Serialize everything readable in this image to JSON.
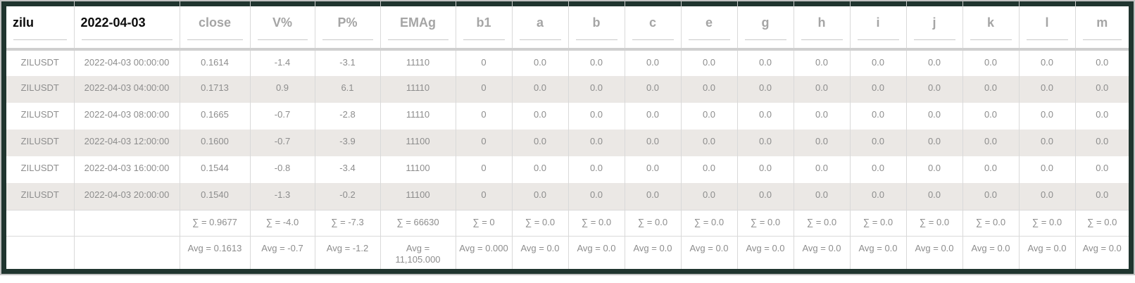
{
  "colors": {
    "frame_dark": "#20352f",
    "frame_outer_line": "#c2c2c2",
    "grid_line": "#d9d9d9",
    "header_divider": "#cfcfcf",
    "stripe_row": "#ebe8e5",
    "text_muted": "#8d8d8d",
    "header_muted": "#a5a5a5",
    "header_strong": "#0d0d0d"
  },
  "table": {
    "columns": [
      {
        "id": "zilu",
        "label": "zilu",
        "strong": true
      },
      {
        "id": "date",
        "label": "2022-04-03",
        "strong": true
      },
      {
        "id": "close",
        "label": "close",
        "strong": false
      },
      {
        "id": "v_pct",
        "label": "V%",
        "strong": false
      },
      {
        "id": "p_pct",
        "label": "P%",
        "strong": false
      },
      {
        "id": "emag",
        "label": "EMAg",
        "strong": false
      },
      {
        "id": "b1",
        "label": "b1",
        "strong": false
      },
      {
        "id": "a",
        "label": "a",
        "strong": false
      },
      {
        "id": "b",
        "label": "b",
        "strong": false
      },
      {
        "id": "c",
        "label": "c",
        "strong": false
      },
      {
        "id": "e",
        "label": "e",
        "strong": false
      },
      {
        "id": "g",
        "label": "g",
        "strong": false
      },
      {
        "id": "h",
        "label": "h",
        "strong": false
      },
      {
        "id": "i",
        "label": "i",
        "strong": false
      },
      {
        "id": "j",
        "label": "j",
        "strong": false
      },
      {
        "id": "k",
        "label": "k",
        "strong": false
      },
      {
        "id": "l",
        "label": "l",
        "strong": false
      },
      {
        "id": "m",
        "label": "m",
        "strong": false
      }
    ],
    "rows": [
      [
        "ZILUSDT",
        "2022-04-03 00:00:00",
        "0.1614",
        "-1.4",
        "-3.1",
        "11110",
        "0",
        "0.0",
        "0.0",
        "0.0",
        "0.0",
        "0.0",
        "0.0",
        "0.0",
        "0.0",
        "0.0",
        "0.0",
        "0.0"
      ],
      [
        "ZILUSDT",
        "2022-04-03 04:00:00",
        "0.1713",
        "0.9",
        "6.1",
        "11110",
        "0",
        "0.0",
        "0.0",
        "0.0",
        "0.0",
        "0.0",
        "0.0",
        "0.0",
        "0.0",
        "0.0",
        "0.0",
        "0.0"
      ],
      [
        "ZILUSDT",
        "2022-04-03 08:00:00",
        "0.1665",
        "-0.7",
        "-2.8",
        "11110",
        "0",
        "0.0",
        "0.0",
        "0.0",
        "0.0",
        "0.0",
        "0.0",
        "0.0",
        "0.0",
        "0.0",
        "0.0",
        "0.0"
      ],
      [
        "ZILUSDT",
        "2022-04-03 12:00:00",
        "0.1600",
        "-0.7",
        "-3.9",
        "11100",
        "0",
        "0.0",
        "0.0",
        "0.0",
        "0.0",
        "0.0",
        "0.0",
        "0.0",
        "0.0",
        "0.0",
        "0.0",
        "0.0"
      ],
      [
        "ZILUSDT",
        "2022-04-03 16:00:00",
        "0.1544",
        "-0.8",
        "-3.4",
        "11100",
        "0",
        "0.0",
        "0.0",
        "0.0",
        "0.0",
        "0.0",
        "0.0",
        "0.0",
        "0.0",
        "0.0",
        "0.0",
        "0.0"
      ],
      [
        "ZILUSDT",
        "2022-04-03 20:00:00",
        "0.1540",
        "-1.3",
        "-0.2",
        "11100",
        "0",
        "0.0",
        "0.0",
        "0.0",
        "0.0",
        "0.0",
        "0.0",
        "0.0",
        "0.0",
        "0.0",
        "0.0",
        "0.0"
      ]
    ],
    "summary": {
      "sum": [
        "",
        "",
        "∑ = 0.9677",
        "∑ = -4.0",
        "∑ = -7.3",
        "∑ = 66630",
        "∑ = 0",
        "∑ = 0.0",
        "∑ = 0.0",
        "∑ = 0.0",
        "∑ = 0.0",
        "∑ = 0.0",
        "∑ = 0.0",
        "∑ = 0.0",
        "∑ = 0.0",
        "∑ = 0.0",
        "∑ = 0.0",
        "∑ = 0.0"
      ],
      "avg": [
        "",
        "",
        "Avg = 0.1613",
        "Avg = -0.7",
        "Avg = -1.2",
        "Avg = 11,105.000",
        "Avg = 0.000",
        "Avg = 0.0",
        "Avg = 0.0",
        "Avg = 0.0",
        "Avg = 0.0",
        "Avg = 0.0",
        "Avg = 0.0",
        "Avg = 0.0",
        "Avg = 0.0",
        "Avg = 0.0",
        "Avg = 0.0",
        "Avg = 0.0"
      ]
    }
  }
}
